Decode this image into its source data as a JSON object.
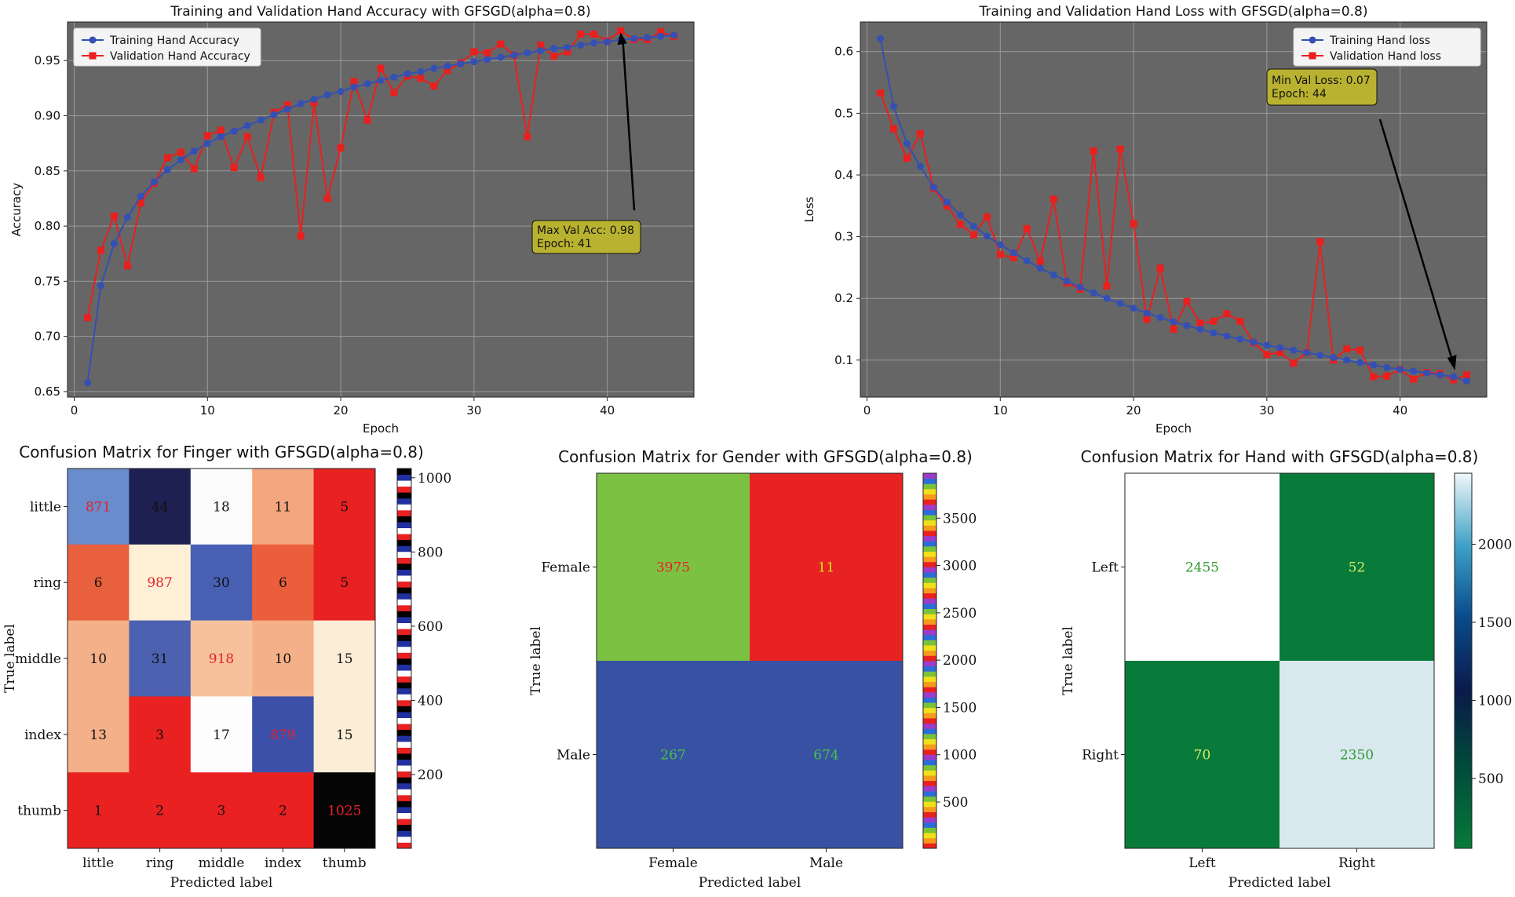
{
  "chart_data": [
    {
      "type": "line",
      "title": "Training and Validation Hand Accuracy with GFSGD(alpha=0.8)",
      "xlabel": "Epoch",
      "ylabel": "Accuracy",
      "xlim": [
        -0.5,
        46.5
      ],
      "ylim": [
        0.645,
        0.985
      ],
      "xticks": [
        0,
        10,
        20,
        30,
        40
      ],
      "yticks": [
        0.65,
        0.7,
        0.75,
        0.8,
        0.85,
        0.9,
        0.95
      ],
      "ytick_labels": [
        "0.65",
        "0.70",
        "0.75",
        "0.80",
        "0.85",
        "0.90",
        "0.95"
      ],
      "x": [
        1,
        2,
        3,
        4,
        5,
        6,
        7,
        8,
        9,
        10,
        11,
        12,
        13,
        14,
        15,
        16,
        17,
        18,
        19,
        20,
        21,
        22,
        23,
        24,
        25,
        26,
        27,
        28,
        29,
        30,
        31,
        32,
        33,
        34,
        35,
        36,
        37,
        38,
        39,
        40,
        41,
        42,
        43,
        44,
        45
      ],
      "series": [
        {
          "name": "Training Hand Accuracy",
          "color": "#3450b4",
          "marker": "circle",
          "values": [
            0.658,
            0.746,
            0.784,
            0.808,
            0.827,
            0.84,
            0.851,
            0.86,
            0.868,
            0.875,
            0.881,
            0.886,
            0.891,
            0.896,
            0.901,
            0.906,
            0.911,
            0.915,
            0.919,
            0.922,
            0.926,
            0.929,
            0.932,
            0.935,
            0.938,
            0.94,
            0.943,
            0.945,
            0.947,
            0.949,
            0.951,
            0.953,
            0.955,
            0.957,
            0.959,
            0.961,
            0.962,
            0.964,
            0.966,
            0.967,
            0.969,
            0.97,
            0.971,
            0.972,
            0.973
          ]
        },
        {
          "name": "Validation Hand Accuracy",
          "color": "#e8201e",
          "marker": "square",
          "values": [
            0.717,
            0.778,
            0.809,
            0.764,
            0.821,
            0.839,
            0.862,
            0.867,
            0.852,
            0.882,
            0.887,
            0.853,
            0.881,
            0.844,
            0.903,
            0.91,
            0.791,
            0.912,
            0.825,
            0.871,
            0.931,
            0.896,
            0.943,
            0.921,
            0.936,
            0.934,
            0.927,
            0.941,
            0.948,
            0.958,
            0.957,
            0.965,
            0.955,
            0.881,
            0.964,
            0.954,
            0.958,
            0.974,
            0.974,
            0.968,
            0.977,
            0.969,
            0.969,
            0.976,
            0.972
          ]
        }
      ],
      "legend": [
        "Training Hand Accuracy",
        "Validation Hand Accuracy"
      ],
      "legend_location": "upper-left",
      "annotation": {
        "line1": "Max Val Acc: 0.98",
        "line2": "Epoch: 41",
        "target_x": 41,
        "target_y": 0.977
      }
    },
    {
      "type": "line",
      "title": "Training and Validation Hand Loss with GFSGD(alpha=0.8)",
      "xlabel": "Epoch",
      "ylabel": "Loss",
      "xlim": [
        -0.5,
        46.5
      ],
      "ylim": [
        0.04,
        0.648
      ],
      "xticks": [
        0,
        10,
        20,
        30,
        40
      ],
      "yticks": [
        0.1,
        0.2,
        0.3,
        0.4,
        0.5,
        0.6
      ],
      "ytick_labels": [
        "0.1",
        "0.2",
        "0.3",
        "0.4",
        "0.5",
        "0.6"
      ],
      "x": [
        1,
        2,
        3,
        4,
        5,
        6,
        7,
        8,
        9,
        10,
        11,
        12,
        13,
        14,
        15,
        16,
        17,
        18,
        19,
        20,
        21,
        22,
        23,
        24,
        25,
        26,
        27,
        28,
        29,
        30,
        31,
        32,
        33,
        34,
        35,
        36,
        37,
        38,
        39,
        40,
        41,
        42,
        43,
        44,
        45
      ],
      "series": [
        {
          "name": "Training Hand loss",
          "color": "#3450b4",
          "marker": "circle",
          "values": [
            0.621,
            0.511,
            0.451,
            0.414,
            0.38,
            0.356,
            0.335,
            0.317,
            0.301,
            0.287,
            0.274,
            0.261,
            0.249,
            0.238,
            0.228,
            0.218,
            0.209,
            0.2,
            0.192,
            0.184,
            0.176,
            0.169,
            0.162,
            0.156,
            0.15,
            0.144,
            0.139,
            0.134,
            0.129,
            0.124,
            0.12,
            0.116,
            0.112,
            0.108,
            0.104,
            0.1,
            0.096,
            0.092,
            0.088,
            0.085,
            0.082,
            0.079,
            0.076,
            0.073,
            0.066
          ]
        },
        {
          "name": "Validation Hand loss",
          "color": "#e8201e",
          "marker": "square",
          "values": [
            0.533,
            0.475,
            0.427,
            0.467,
            0.378,
            0.35,
            0.32,
            0.303,
            0.332,
            0.271,
            0.266,
            0.313,
            0.26,
            0.361,
            0.225,
            0.215,
            0.439,
            0.22,
            0.442,
            0.321,
            0.166,
            0.249,
            0.15,
            0.195,
            0.16,
            0.163,
            0.175,
            0.163,
            0.128,
            0.109,
            0.112,
            0.095,
            0.112,
            0.292,
            0.1,
            0.118,
            0.116,
            0.073,
            0.074,
            0.085,
            0.069,
            0.08,
            0.078,
            0.068,
            0.076
          ]
        }
      ],
      "legend": [
        "Training Hand loss",
        "Validation Hand loss"
      ],
      "legend_location": "upper-right",
      "annotation": {
        "line1": "Min Val Loss: 0.07",
        "line2": "Epoch: 44",
        "target_x": 44,
        "target_y": 0.068
      }
    },
    {
      "type": "heatmap",
      "title": "Confusion Matrix for Finger with GFSGD(alpha=0.8)",
      "xlabel": "Predicted label",
      "ylabel": "True label",
      "row_labels": [
        "little",
        "ring",
        "middle",
        "index",
        "thumb"
      ],
      "col_labels": [
        "little",
        "ring",
        "middle",
        "index",
        "thumb"
      ],
      "values": [
        [
          871,
          44,
          18,
          11,
          5
        ],
        [
          6,
          987,
          30,
          6,
          5
        ],
        [
          10,
          31,
          918,
          10,
          15
        ],
        [
          13,
          3,
          17,
          879,
          15
        ],
        [
          1,
          2,
          3,
          2,
          1025
        ]
      ],
      "cell_text": [
        [
          "871",
          "44",
          "18",
          "11",
          "5"
        ],
        [
          "6",
          "987",
          "30",
          "6",
          "5"
        ],
        [
          "10",
          "31",
          "918",
          "10",
          "15"
        ],
        [
          "13",
          "3",
          "17",
          "879",
          "15"
        ],
        [
          "1",
          "2",
          "3",
          "2",
          "1025"
        ]
      ],
      "colorbar_ticks": [
        "200",
        "400",
        "600",
        "800",
        "1000"
      ],
      "colorbar_values": [
        200,
        400,
        600,
        800,
        1000
      ],
      "colorbar_range": [
        1,
        1025
      ],
      "colormap": "flag"
    },
    {
      "type": "heatmap",
      "title": "Confusion Matrix for Gender with GFSGD(alpha=0.8)",
      "xlabel": "Predicted label",
      "ylabel": "True label",
      "row_labels": [
        "Female",
        "Male"
      ],
      "col_labels": [
        "Female",
        "Male"
      ],
      "values": [
        [
          3975,
          11
        ],
        [
          267,
          674
        ]
      ],
      "cell_text": [
        [
          "3975",
          "11"
        ],
        [
          "267",
          "674"
        ]
      ],
      "colorbar_ticks": [
        "500",
        "1000",
        "1500",
        "2000",
        "2500",
        "3000",
        "3500"
      ],
      "colorbar_values": [
        500,
        1000,
        1500,
        2000,
        2500,
        3000,
        3500
      ],
      "colorbar_range": [
        11,
        3975
      ],
      "colormap": "prism"
    },
    {
      "type": "heatmap",
      "title": "Confusion Matrix for Hand with GFSGD(alpha=0.8)",
      "xlabel": "Predicted label",
      "ylabel": "True label",
      "row_labels": [
        "Left",
        "Right"
      ],
      "col_labels": [
        "Left",
        "Right"
      ],
      "values": [
        [
          2455,
          52
        ],
        [
          70,
          2350
        ]
      ],
      "cell_text": [
        [
          "2455",
          "52"
        ],
        [
          "70",
          "2350"
        ]
      ],
      "colorbar_ticks": [
        "500",
        "1000",
        "1500",
        "2000"
      ],
      "colorbar_values": [
        500,
        1000,
        1500,
        2000
      ],
      "colorbar_range": [
        52,
        2455
      ],
      "colormap": "ocean"
    }
  ],
  "colors": {
    "plot_bg": "#666666",
    "grid": "#9a9a9a",
    "annotation_bg": "#b9b230",
    "finger_cells": [
      [
        "#6a8bcc",
        "#1f2052",
        "#fbfbfb",
        "#f4a67e",
        "#ea2121"
      ],
      [
        "#e8603e",
        "#fdf0d6",
        "#4860b4",
        "#ea5e3c",
        "#ea2121"
      ],
      [
        "#f4b088",
        "#4c62b0",
        "#f6c29c",
        "#f4b088",
        "#fceed6"
      ],
      [
        "#f4b088",
        "#ea2121",
        "#fdfdfd",
        "#3c50aa",
        "#fceed6"
      ],
      [
        "#ea2121",
        "#ea2121",
        "#ea2121",
        "#ea2121",
        "#050505"
      ]
    ],
    "finger_text": [
      [
        "#e8202a",
        "#111111",
        "#111111",
        "#111111",
        "#111111"
      ],
      [
        "#111111",
        "#e8202a",
        "#111111",
        "#111111",
        "#111111"
      ],
      [
        "#111111",
        "#111111",
        "#e8202a",
        "#111111",
        "#111111"
      ],
      [
        "#111111",
        "#111111",
        "#111111",
        "#e8202a",
        "#111111"
      ],
      [
        "#111111",
        "#111111",
        "#111111",
        "#111111",
        "#e8202a"
      ]
    ],
    "gender_cells": [
      [
        "#7cc242",
        "#e82222"
      ],
      [
        "#3951a2",
        "#3951a2"
      ]
    ],
    "gender_text": [
      [
        "#e8202a",
        "#d4e41a"
      ],
      [
        "#46c24a",
        "#46c24a"
      ]
    ],
    "hand_cells": [
      [
        "#ffffff",
        "#087a3a"
      ],
      [
        "#087a3a",
        "#d8e8ee"
      ]
    ],
    "hand_text": [
      [
        "#2f9a2f",
        "#d7ea6a"
      ],
      [
        "#d7ea6a",
        "#2f9a2f"
      ]
    ]
  }
}
